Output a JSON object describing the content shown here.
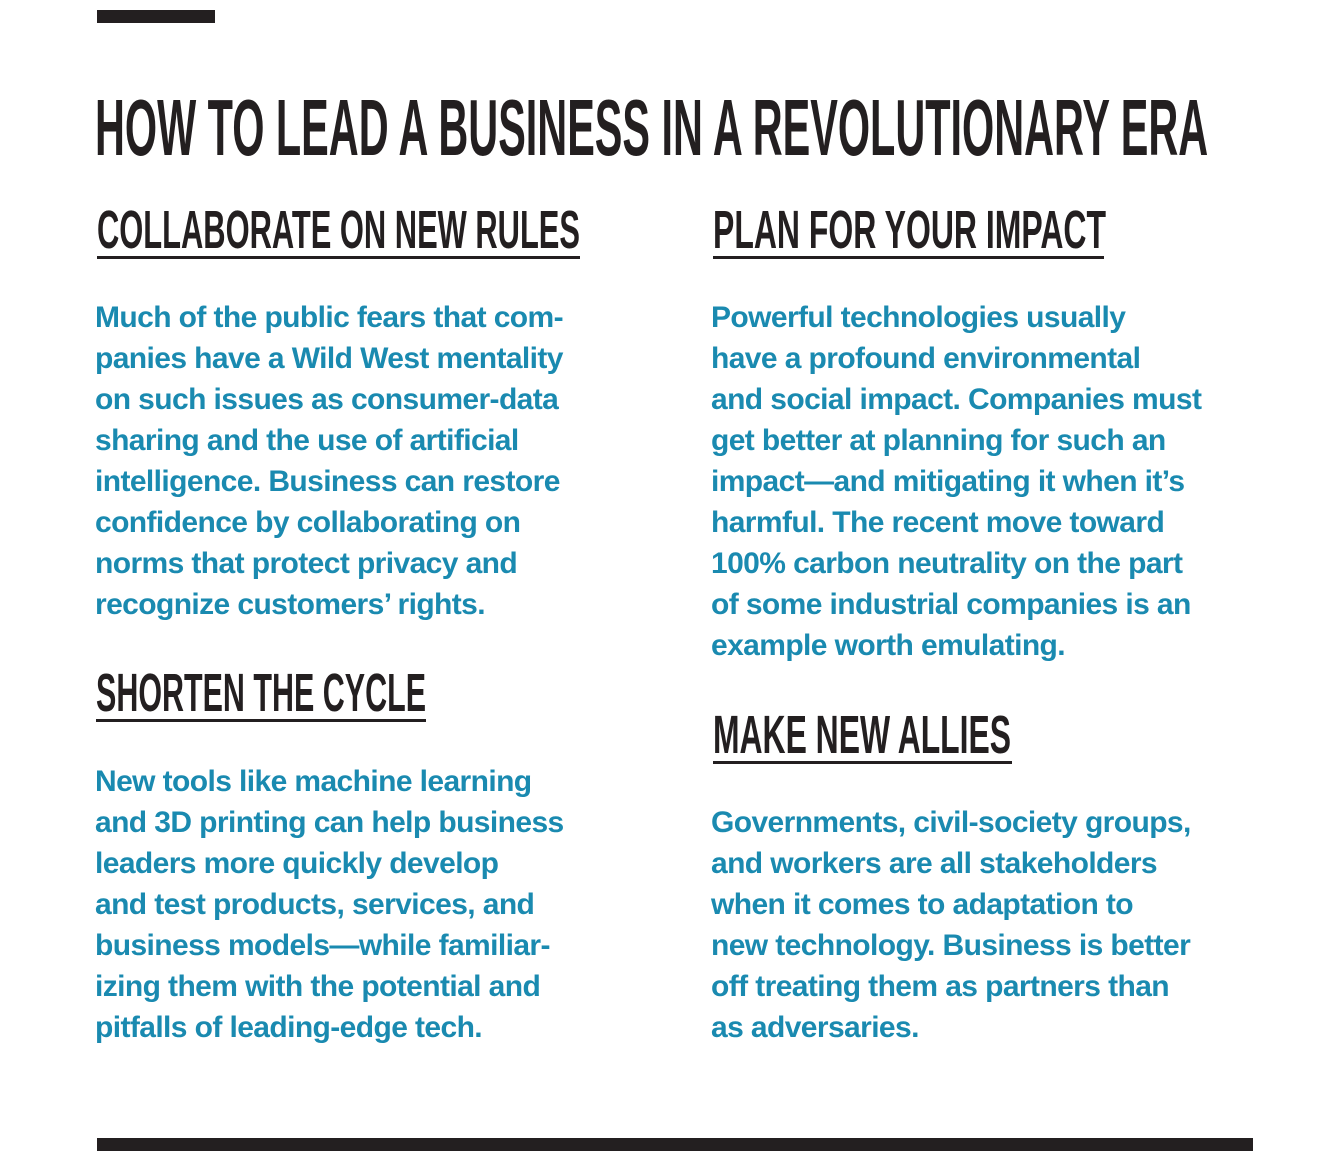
{
  "title": "HOW TO LEAD A BUSINESS IN A REVOLUTIONARY ERA",
  "colors": {
    "heading": "#231f20",
    "body": "#1a8ab0"
  },
  "sections": [
    {
      "heading": "COLLABORATE ON NEW RULES",
      "lines": [
        "Much of the public fears that com-",
        "panies have a Wild West mentality",
        "on such issues as consumer-data",
        "sharing and the use of artificial",
        "intelligence. Business can restore",
        "confidence by collaborating on",
        "norms that protect privacy and",
        "recognize customers’ rights."
      ]
    },
    {
      "heading": "SHORTEN THE CYCLE",
      "lines": [
        "New tools like machine learning",
        "and 3D printing can help business",
        "leaders more quickly develop",
        "and test products, services, and",
        "business models—while familiar-",
        "izing them with the potential and",
        "pitfalls of leading-edge tech."
      ]
    },
    {
      "heading": "PLAN FOR YOUR IMPACT",
      "lines": [
        "Powerful technologies usually",
        "have a profound environmental",
        "and social impact. Companies must",
        "get better at planning for such an",
        "impact—and mitigating it when it’s",
        "harmful. The recent move toward",
        "100% carbon neutrality on the part",
        "of some industrial companies is an",
        "example worth emulating."
      ]
    },
    {
      "heading": "MAKE NEW ALLIES",
      "lines": [
        "Governments, civil-society groups,",
        "and workers are all stakeholders",
        "when it comes to adaptation to",
        "new technology. Business is better",
        "off treating them as partners than",
        "as adversaries."
      ]
    }
  ]
}
